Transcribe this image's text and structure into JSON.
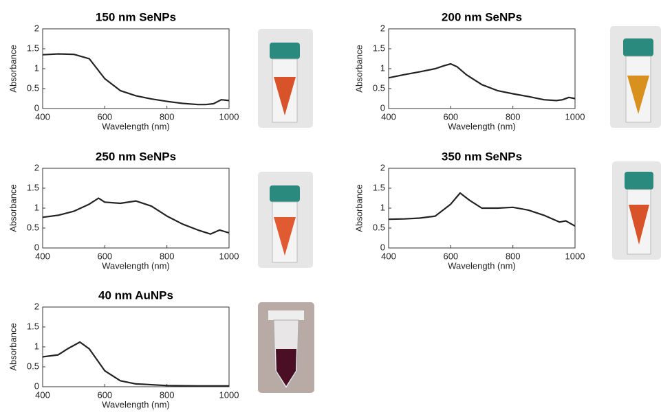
{
  "chart_data": [
    {
      "type": "line",
      "title": "150 nm SeNPs",
      "x_label": "Wavelength (nm)",
      "y_label": "Absorbance",
      "x": [
        400,
        450,
        500,
        550,
        600,
        650,
        700,
        750,
        800,
        850,
        900,
        925,
        950,
        975,
        1000
      ],
      "values": [
        1.35,
        1.37,
        1.36,
        1.25,
        0.75,
        0.45,
        0.32,
        0.24,
        0.18,
        0.13,
        0.1,
        0.1,
        0.12,
        0.22,
        0.2
      ],
      "color": "#222222",
      "xlim": [
        400,
        1000
      ],
      "ylim": [
        0,
        2
      ],
      "xticks": [
        400,
        600,
        800,
        1000
      ],
      "yticks": [
        0,
        0.5,
        1,
        1.5,
        2
      ]
    },
    {
      "type": "line",
      "title": "200 nm SeNPs",
      "x_label": "Wavelength (nm)",
      "y_label": "Absorbance",
      "x": [
        400,
        450,
        500,
        550,
        580,
        600,
        620,
        650,
        700,
        750,
        800,
        850,
        900,
        940,
        960,
        980,
        1000
      ],
      "values": [
        0.77,
        0.85,
        0.92,
        1.0,
        1.08,
        1.12,
        1.05,
        0.85,
        0.6,
        0.45,
        0.37,
        0.3,
        0.22,
        0.2,
        0.22,
        0.28,
        0.25
      ],
      "color": "#222222",
      "xlim": [
        400,
        1000
      ],
      "ylim": [
        0,
        2
      ],
      "xticks": [
        400,
        600,
        800,
        1000
      ],
      "yticks": [
        0,
        0.5,
        1,
        1.5,
        2
      ]
    },
    {
      "type": "line",
      "title": "250 nm SeNPs",
      "x_label": "Wavelength (nm)",
      "y_label": "Absorbance",
      "x": [
        400,
        450,
        500,
        550,
        580,
        600,
        650,
        700,
        750,
        800,
        850,
        900,
        940,
        970,
        1000
      ],
      "values": [
        0.77,
        0.82,
        0.92,
        1.1,
        1.25,
        1.15,
        1.12,
        1.18,
        1.05,
        0.8,
        0.6,
        0.45,
        0.35,
        0.45,
        0.38
      ],
      "color": "#222222",
      "xlim": [
        400,
        1000
      ],
      "ylim": [
        0,
        2
      ],
      "xticks": [
        400,
        600,
        800,
        1000
      ],
      "yticks": [
        0,
        0.5,
        1,
        1.5,
        2
      ]
    },
    {
      "type": "line",
      "title": "350 nm SeNPs",
      "x_label": "Wavelength (nm)",
      "y_label": "Absorbance",
      "x": [
        400,
        450,
        500,
        550,
        600,
        630,
        660,
        700,
        750,
        800,
        850,
        900,
        950,
        970,
        1000
      ],
      "values": [
        0.72,
        0.73,
        0.75,
        0.8,
        1.1,
        1.38,
        1.2,
        1.0,
        1.0,
        1.02,
        0.95,
        0.82,
        0.65,
        0.68,
        0.55
      ],
      "color": "#222222",
      "xlim": [
        400,
        1000
      ],
      "ylim": [
        0,
        2
      ],
      "xticks": [
        400,
        600,
        800,
        1000
      ],
      "yticks": [
        0,
        0.5,
        1,
        1.5,
        2
      ]
    },
    {
      "type": "line",
      "title": "40 nm AuNPs",
      "x_label": "Wavelength (nm)",
      "y_label": "Absorbance",
      "x": [
        400,
        450,
        480,
        520,
        550,
        600,
        650,
        700,
        800,
        900,
        1000
      ],
      "values": [
        0.75,
        0.8,
        0.95,
        1.12,
        0.95,
        0.4,
        0.15,
        0.07,
        0.03,
        0.02,
        0.02
      ],
      "color": "#222222",
      "xlim": [
        400,
        1000
      ],
      "ylim": [
        0,
        2
      ],
      "xticks": [
        400,
        600,
        800,
        1000
      ],
      "yticks": [
        0,
        0.5,
        1,
        1.5,
        2
      ]
    }
  ]
}
